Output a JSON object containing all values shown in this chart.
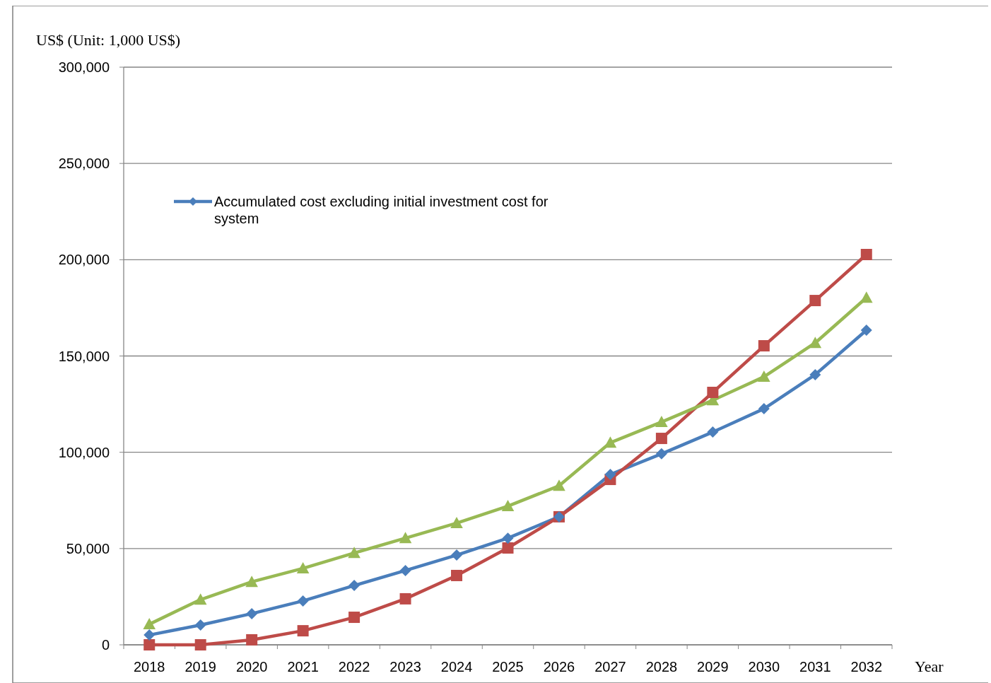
{
  "chart_data": {
    "type": "line",
    "ylabel": "US$ (Unit: 1,000 US$)",
    "xlabel": "Year",
    "categories": [
      "2018",
      "2019",
      "2020",
      "2021",
      "2022",
      "2023",
      "2024",
      "2025",
      "2026",
      "2027",
      "2028",
      "2029",
      "2030",
      "2031",
      "2032"
    ],
    "series": [
      {
        "name": "Accumulated cost excluding initial investment cost for system",
        "color": "#4a7ebb",
        "marker": "diamond",
        "values": [
          5100,
          10300,
          16200,
          22800,
          30800,
          38600,
          46600,
          55400,
          66500,
          88500,
          99200,
          110500,
          122600,
          140300,
          163400
        ]
      },
      {
        "color": "#be4b48",
        "marker": "square",
        "values": [
          0,
          0,
          2600,
          7300,
          14300,
          23900,
          36000,
          50300,
          66500,
          85900,
          107200,
          131100,
          155300,
          178800,
          202700
        ]
      },
      {
        "color": "#98b954",
        "marker": "triangle",
        "values": [
          10700,
          23500,
          32700,
          39700,
          47700,
          55400,
          63200,
          72000,
          82600,
          105000,
          115700,
          127000,
          139200,
          156800,
          180300
        ]
      }
    ],
    "ylim": [
      0,
      300000
    ],
    "yticks": [
      0,
      {
        "value": 50000,
        "label": "50,000"
      },
      {
        "value": 100000,
        "label": "100,000"
      },
      {
        "value": 150000,
        "label": "150,000"
      },
      {
        "value": 200000,
        "label": "200,000"
      },
      {
        "value": 250000,
        "label": "250,000"
      },
      {
        "value": 300000,
        "label": "300,000"
      }
    ],
    "grid": "y",
    "legend": "top left",
    "line_style": "solid"
  }
}
